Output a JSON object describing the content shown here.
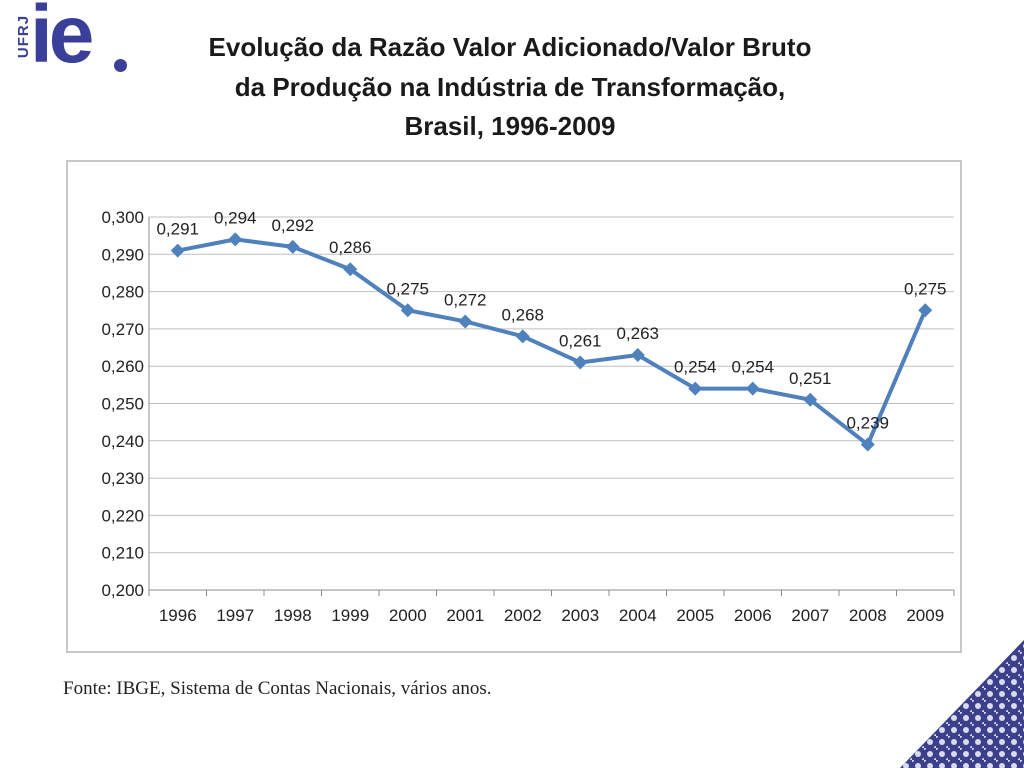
{
  "logo": {
    "university": "UFRJ",
    "mark": "ie"
  },
  "title": {
    "line1": "Evolução da Razão Valor Adicionado/Valor Bruto",
    "line2": "da Produção na Indústria de Transformação,",
    "line3": "Brasil, 1996-2009"
  },
  "source": "Fonte: IBGE, Sistema de Contas Nacionais, vários anos.",
  "colors": {
    "series": "#4f81bd",
    "logo": "#3a3f9a",
    "grid": "#bfbfbf"
  },
  "chart_data": {
    "type": "line",
    "categories": [
      "1996",
      "1997",
      "1998",
      "1999",
      "2000",
      "2001",
      "2002",
      "2003",
      "2004",
      "2005",
      "2006",
      "2007",
      "2008",
      "2009"
    ],
    "values": [
      0.291,
      0.294,
      0.292,
      0.286,
      0.275,
      0.272,
      0.268,
      0.261,
      0.263,
      0.254,
      0.254,
      0.251,
      0.239,
      0.275
    ],
    "data_labels": [
      "0,291",
      "0,294",
      "0,292",
      "0,286",
      "0,275",
      "0,272",
      "0,268",
      "0,261",
      "0,263",
      "0,254",
      "0,254",
      "0,251",
      "0,239",
      "0,275"
    ],
    "yticks": [
      "0,200",
      "0,210",
      "0,220",
      "0,230",
      "0,240",
      "0,250",
      "0,260",
      "0,270",
      "0,280",
      "0,290",
      "0,300"
    ],
    "ylim": [
      0.2,
      0.3
    ],
    "grid": true,
    "legend": "none",
    "marker": "diamond"
  }
}
